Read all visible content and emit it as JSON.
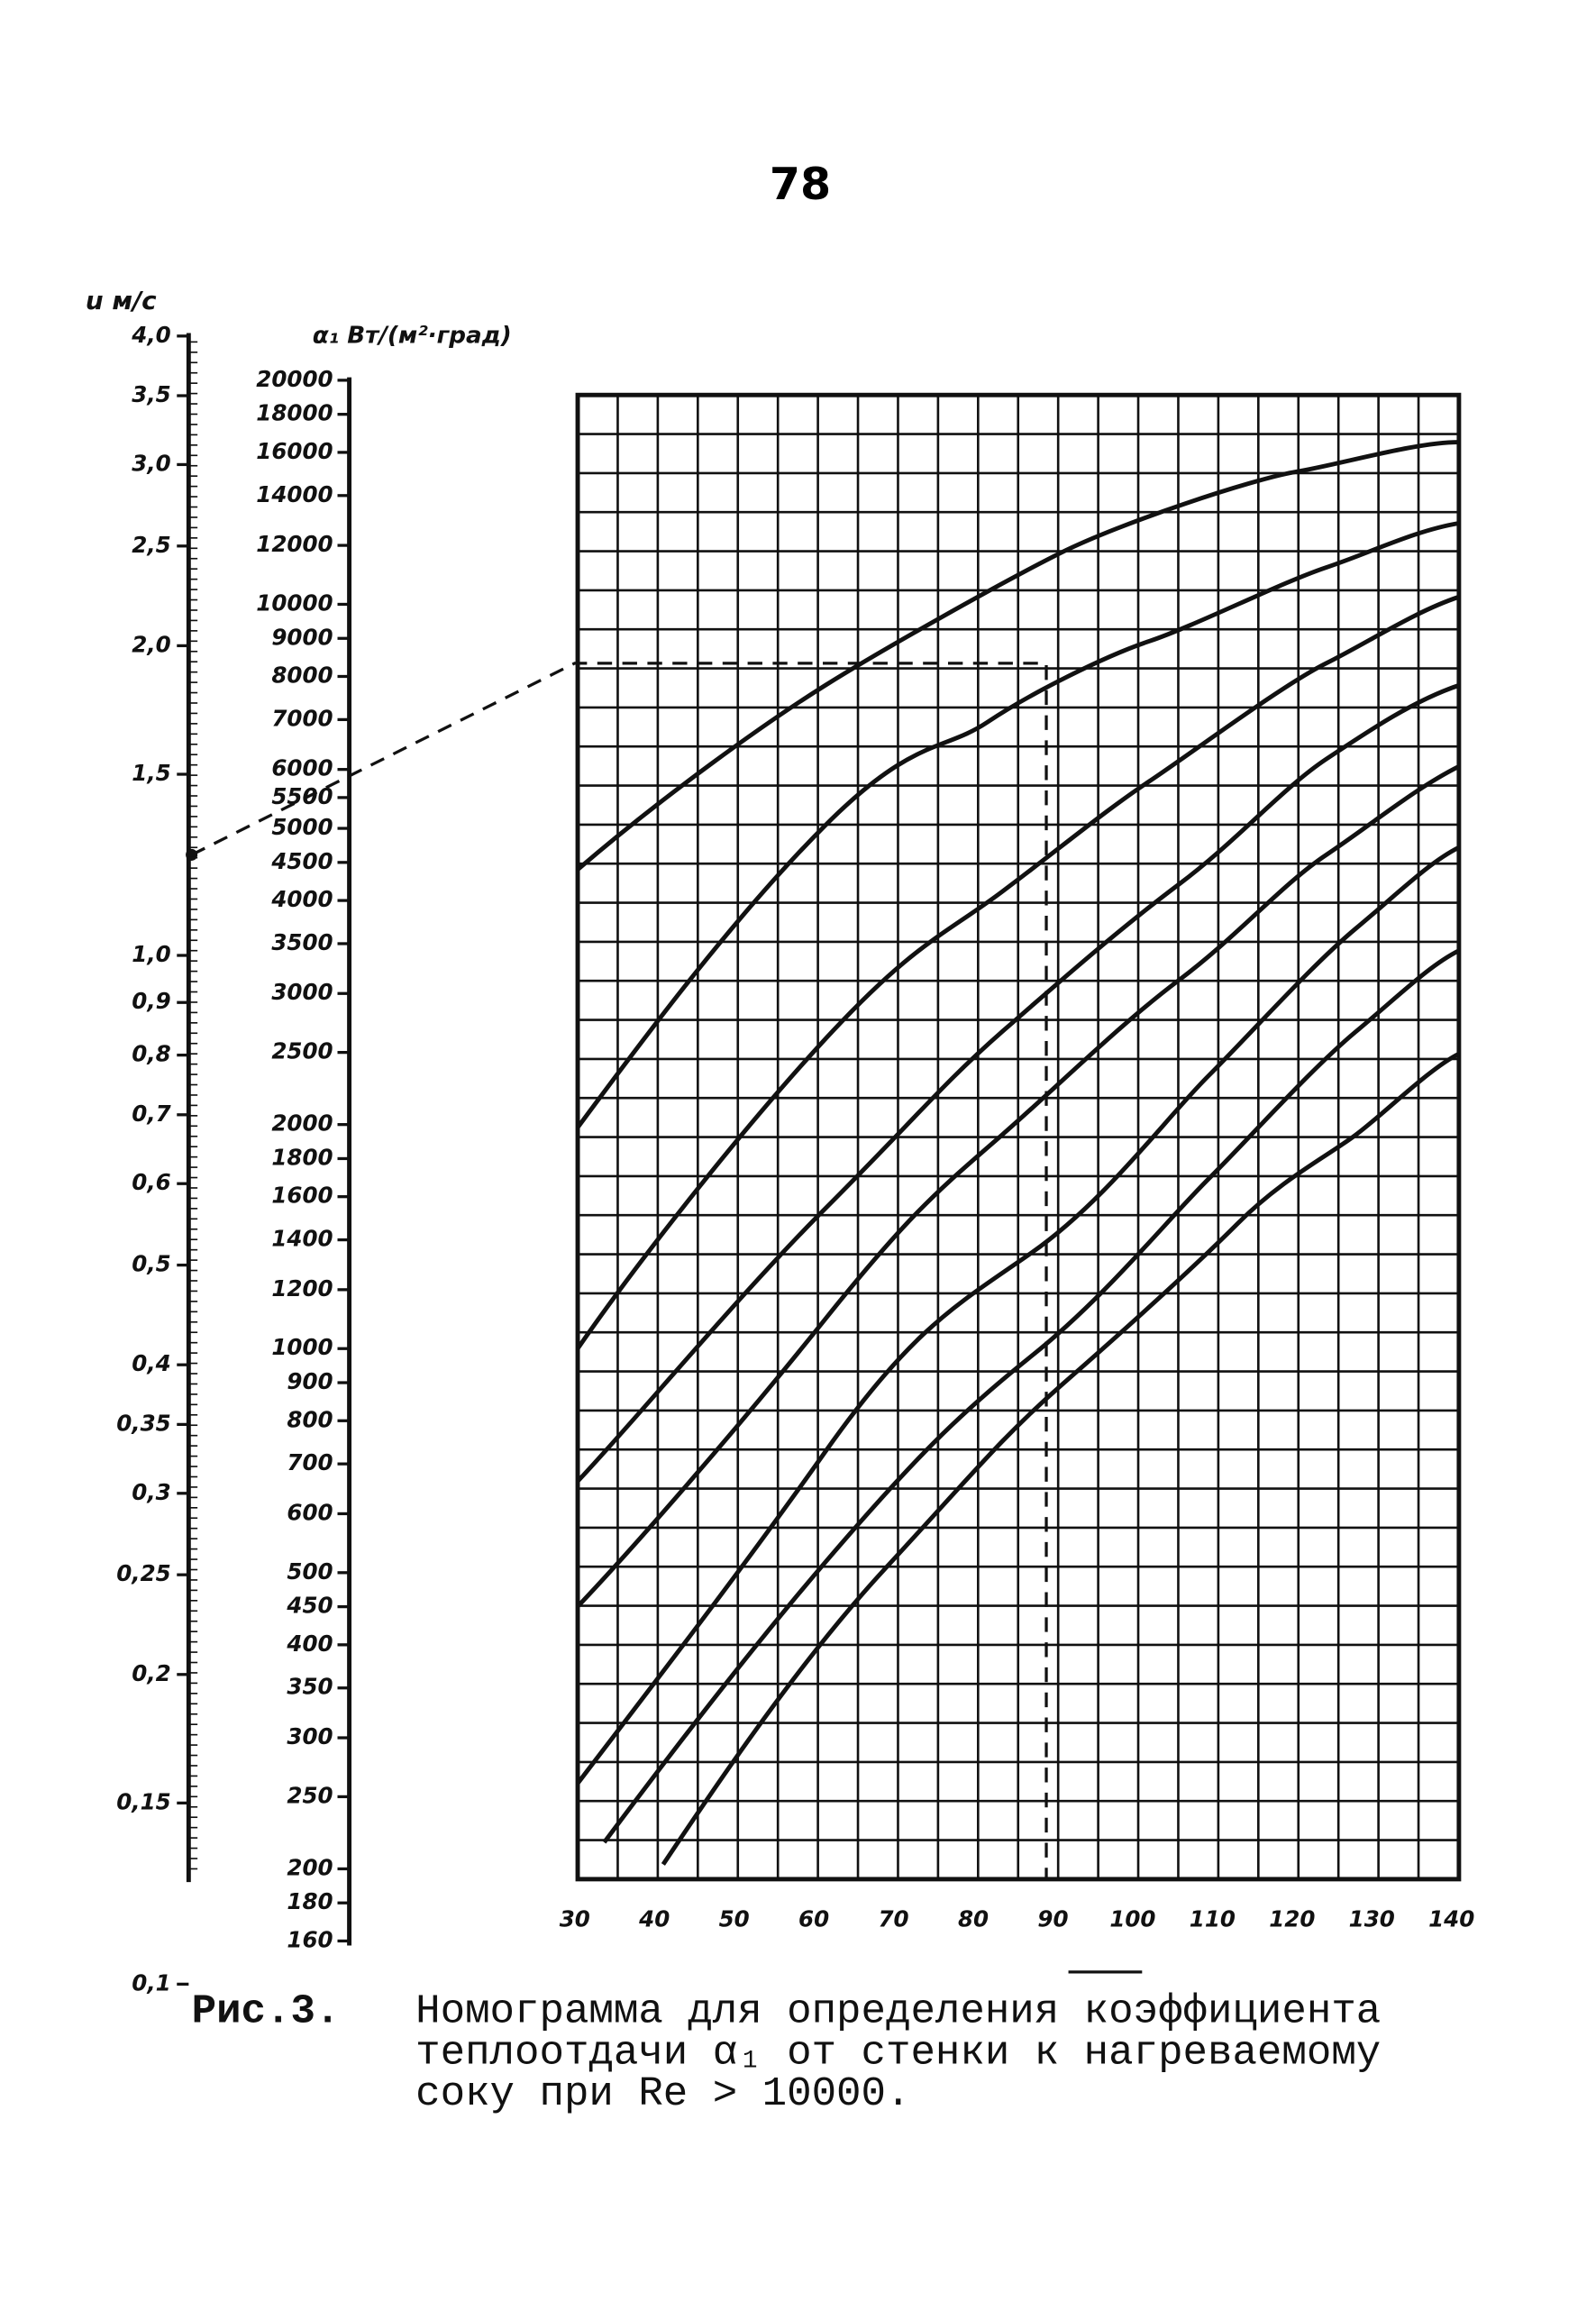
{
  "page_number": "78",
  "velocity_scale": {
    "label": "u м/с",
    "ticks": [
      "4,0",
      "3,5",
      "3,0",
      "2,5",
      "2,0",
      "1,5",
      "1,0",
      "0,9",
      "0,8",
      "0,7",
      "0,6",
      "0,5",
      "0,4",
      "0,35",
      "0,3",
      "0,25",
      "0,2",
      "0,15",
      "0,1"
    ]
  },
  "alpha_scale": {
    "label": "α₁ Вт/(м²·град)",
    "ticks": [
      "20000",
      "18000",
      "16000",
      "14000",
      "12000",
      "10000",
      "9000",
      "8000",
      "7000",
      "6000",
      "5500",
      "5000",
      "4500",
      "4000",
      "3500",
      "3000",
      "2500",
      "2000",
      "1800",
      "1600",
      "1400",
      "1200",
      "1000",
      "900",
      "800",
      "700",
      "600",
      "500",
      "450",
      "400",
      "350",
      "300",
      "250",
      "200",
      "180",
      "160"
    ]
  },
  "x_axis": {
    "ticks": [
      "30",
      "40",
      "50",
      "60",
      "70",
      "80",
      "90",
      "100",
      "110",
      "120",
      "130",
      "140"
    ]
  },
  "caption": {
    "label": "Рис.3.",
    "lines": [
      "Номограмма для определения коэффициента",
      "теплоотдачи α₁ от стенки к нагреваемому",
      "соку при Re > 10000."
    ]
  }
}
